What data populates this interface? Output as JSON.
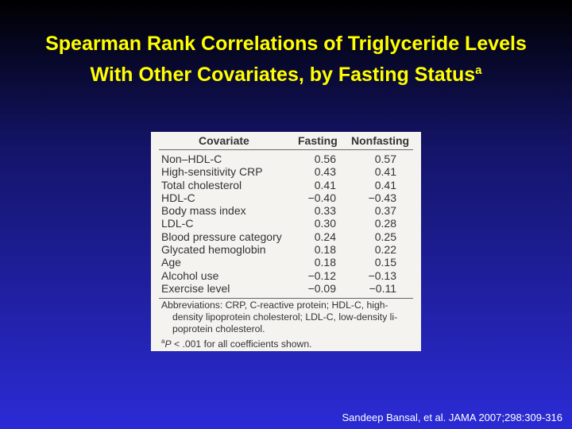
{
  "title": {
    "lines": [
      "Spearman Rank Correlations of Triglyceride Levels",
      "With Other Covariates, by Fasting Status"
    ],
    "superscript": "a"
  },
  "table": {
    "header": [
      "Covariate",
      "Fasting",
      "Nonfasting"
    ],
    "rows": [
      [
        "Non–HDL-C",
        "0.56",
        "0.57"
      ],
      [
        "High-sensitivity CRP",
        "0.43",
        "0.41"
      ],
      [
        "Total cholesterol",
        "0.41",
        "0.41"
      ],
      [
        "HDL-C",
        "−0.40",
        "−0.43"
      ],
      [
        "Body mass index",
        "0.33",
        "0.37"
      ],
      [
        "LDL-C",
        "0.30",
        "0.28"
      ],
      [
        "Blood pressure category",
        "0.24",
        "0.25"
      ],
      [
        "Glycated hemoglobin",
        "0.18",
        "0.22"
      ],
      [
        "Age",
        "0.18",
        "0.15"
      ],
      [
        "Alcohol use",
        "−0.12",
        "−0.13"
      ],
      [
        "Exercise level",
        "−0.09",
        "−0.11"
      ]
    ]
  },
  "footnotes": {
    "abbreviations": [
      "Abbreviations: CRP, C-reactive protein; HDL-C, high-",
      "density lipoprotein cholesterol; LDL-C, low-density li-",
      "poprotein cholesterol."
    ],
    "significance": {
      "marker": "a",
      "symbol": "P",
      "text": " < .001 for all coefficients shown."
    }
  },
  "citation": "Sandeep Bansal, et al. JAMA 2007;298:309-316"
}
